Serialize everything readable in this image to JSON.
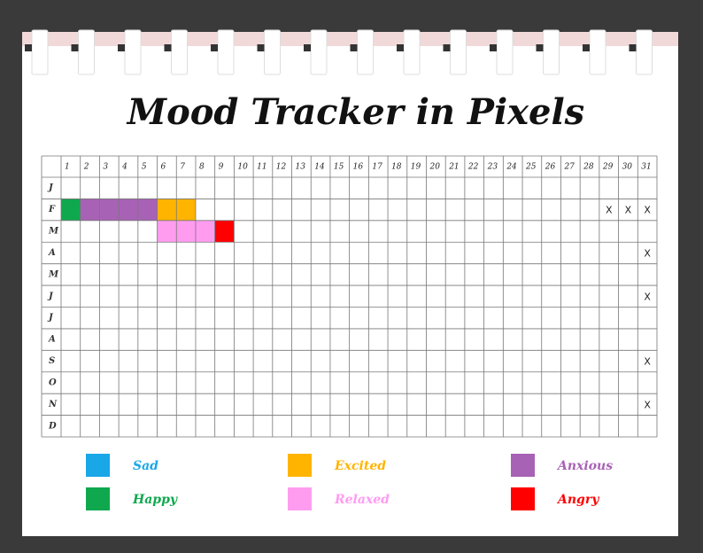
{
  "title": "Mood Tracker in Pixels",
  "days": [
    1,
    2,
    3,
    4,
    5,
    6,
    7,
    8,
    9,
    10,
    11,
    12,
    13,
    14,
    15,
    16,
    17,
    18,
    19,
    20,
    21,
    22,
    23,
    24,
    25,
    26,
    27,
    28,
    29,
    30,
    31
  ],
  "rows": [
    {
      "label": "J",
      "cells": [
        null,
        null,
        null,
        null,
        null,
        null,
        null,
        null,
        null,
        null,
        null,
        null,
        null,
        null,
        null,
        null,
        null,
        null,
        null,
        null,
        null,
        null,
        null,
        null,
        null,
        null,
        null,
        null,
        null,
        null,
        null
      ]
    },
    {
      "label": "F",
      "cells": [
        "#0fa84e",
        "#a862b5",
        "#a862b5",
        "#a862b5",
        "#a862b5",
        "#ffb400",
        "#ffb400",
        null,
        null,
        null,
        null,
        null,
        null,
        null,
        null,
        null,
        null,
        null,
        null,
        null,
        null,
        null,
        null,
        null,
        null,
        null,
        null,
        null,
        "X",
        "X",
        "X"
      ]
    },
    {
      "label": "M",
      "cells": [
        null,
        null,
        null,
        null,
        null,
        "#ff9cf0",
        "#ff9cf0",
        "#ff9cf0",
        "#ff0000",
        null,
        null,
        null,
        null,
        null,
        null,
        null,
        null,
        null,
        null,
        null,
        null,
        null,
        null,
        null,
        null,
        null,
        null,
        null,
        null,
        null,
        null
      ]
    },
    {
      "label": "A",
      "cells": [
        null,
        null,
        null,
        null,
        null,
        null,
        null,
        null,
        null,
        null,
        null,
        null,
        null,
        null,
        null,
        null,
        null,
        null,
        null,
        null,
        null,
        null,
        null,
        null,
        null,
        null,
        null,
        null,
        null,
        null,
        "X"
      ]
    },
    {
      "label": "M",
      "cells": [
        null,
        null,
        null,
        null,
        null,
        null,
        null,
        null,
        null,
        null,
        null,
        null,
        null,
        null,
        null,
        null,
        null,
        null,
        null,
        null,
        null,
        null,
        null,
        null,
        null,
        null,
        null,
        null,
        null,
        null,
        null
      ]
    },
    {
      "label": "J",
      "cells": [
        null,
        null,
        null,
        null,
        null,
        null,
        null,
        null,
        null,
        null,
        null,
        null,
        null,
        null,
        null,
        null,
        null,
        null,
        null,
        null,
        null,
        null,
        null,
        null,
        null,
        null,
        null,
        null,
        null,
        null,
        "X"
      ]
    },
    {
      "label": "J",
      "cells": [
        null,
        null,
        null,
        null,
        null,
        null,
        null,
        null,
        null,
        null,
        null,
        null,
        null,
        null,
        null,
        null,
        null,
        null,
        null,
        null,
        null,
        null,
        null,
        null,
        null,
        null,
        null,
        null,
        null,
        null,
        null
      ]
    },
    {
      "label": "A",
      "cells": [
        null,
        null,
        null,
        null,
        null,
        null,
        null,
        null,
        null,
        null,
        null,
        null,
        null,
        null,
        null,
        null,
        null,
        null,
        null,
        null,
        null,
        null,
        null,
        null,
        null,
        null,
        null,
        null,
        null,
        null,
        null
      ]
    },
    {
      "label": "S",
      "cells": [
        null,
        null,
        null,
        null,
        null,
        null,
        null,
        null,
        null,
        null,
        null,
        null,
        null,
        null,
        null,
        null,
        null,
        null,
        null,
        null,
        null,
        null,
        null,
        null,
        null,
        null,
        null,
        null,
        null,
        null,
        "X"
      ]
    },
    {
      "label": "O",
      "cells": [
        null,
        null,
        null,
        null,
        null,
        null,
        null,
        null,
        null,
        null,
        null,
        null,
        null,
        null,
        null,
        null,
        null,
        null,
        null,
        null,
        null,
        null,
        null,
        null,
        null,
        null,
        null,
        null,
        null,
        null,
        null
      ]
    },
    {
      "label": "N",
      "cells": [
        null,
        null,
        null,
        null,
        null,
        null,
        null,
        null,
        null,
        null,
        null,
        null,
        null,
        null,
        null,
        null,
        null,
        null,
        null,
        null,
        null,
        null,
        null,
        null,
        null,
        null,
        null,
        null,
        null,
        null,
        "X"
      ]
    },
    {
      "label": "D",
      "cells": [
        null,
        null,
        null,
        null,
        null,
        null,
        null,
        null,
        null,
        null,
        null,
        null,
        null,
        null,
        null,
        null,
        null,
        null,
        null,
        null,
        null,
        null,
        null,
        null,
        null,
        null,
        null,
        null,
        null,
        null,
        null
      ]
    }
  ],
  "legend": [
    {
      "name": "Sad",
      "color": "#1aa7e8"
    },
    {
      "name": "Happy",
      "color": "#0fa84e"
    },
    {
      "name": "Excited",
      "color": "#ffb400"
    },
    {
      "name": "Relaxed",
      "color": "#ff9cf0"
    },
    {
      "name": "Anxious",
      "color": "#a862b5"
    },
    {
      "name": "Angry",
      "color": "#ff0000"
    }
  ]
}
